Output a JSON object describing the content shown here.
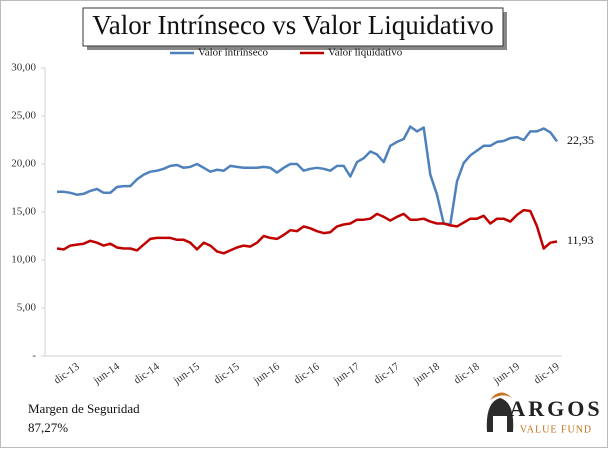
{
  "chart_data": {
    "type": "line",
    "title": "Valor Intrínseco vs Valor Liquidativo",
    "categories": [
      "dic-13",
      null,
      null,
      null,
      null,
      null,
      "jun-14",
      null,
      null,
      null,
      null,
      null,
      "dic-14",
      null,
      null,
      null,
      null,
      null,
      "jun-15",
      null,
      null,
      null,
      null,
      null,
      "dic-15",
      null,
      null,
      null,
      null,
      null,
      "jun-16",
      null,
      null,
      null,
      null,
      null,
      "dic-16",
      null,
      null,
      null,
      null,
      null,
      "jun-17",
      null,
      null,
      null,
      null,
      null,
      "dic-17",
      null,
      null,
      null,
      null,
      null,
      "jun-18",
      null,
      null,
      null,
      null,
      null,
      "dic-18",
      null,
      null,
      null,
      null,
      null,
      "jun-19",
      null,
      null,
      null,
      null,
      null,
      "dic-19",
      null,
      null,
      null
    ],
    "series": [
      {
        "name": "Valor intrínseco",
        "color": "#4f81bd",
        "values": [
          17.1,
          17.1,
          17.0,
          16.8,
          16.9,
          17.2,
          17.4,
          17.0,
          17.0,
          17.6,
          17.7,
          17.7,
          18.4,
          18.9,
          19.2,
          19.3,
          19.5,
          19.8,
          19.9,
          19.6,
          19.7,
          20.0,
          19.6,
          19.2,
          19.4,
          19.3,
          19.8,
          19.7,
          19.6,
          19.6,
          19.6,
          19.7,
          19.6,
          19.1,
          19.6,
          20.0,
          20.0,
          19.3,
          19.5,
          19.6,
          19.5,
          19.3,
          19.8,
          19.8,
          18.7,
          20.2,
          20.6,
          21.3,
          21.0,
          20.2,
          21.9,
          22.3,
          22.6,
          23.9,
          23.4,
          23.8,
          18.9,
          16.8,
          13.8,
          13.7,
          18.2,
          20.1,
          20.9,
          21.4,
          21.9,
          21.9,
          22.3,
          22.4,
          22.7,
          22.8,
          22.5,
          23.4,
          23.4,
          23.7,
          23.3,
          22.35
        ],
        "value_labels": [
          null,
          null,
          null,
          null,
          null,
          null,
          null,
          null,
          null,
          null,
          null,
          null,
          null,
          null,
          null,
          null,
          null,
          null,
          null,
          null,
          null,
          null,
          null,
          null,
          null,
          null,
          null,
          null,
          null,
          null,
          null,
          null,
          null,
          null,
          null,
          null,
          null,
          null,
          null,
          null,
          null,
          null,
          null,
          null,
          null,
          null,
          null,
          null,
          null,
          null,
          null,
          null,
          null,
          null,
          null,
          null,
          null,
          null,
          null,
          null,
          null,
          null,
          null,
          null,
          null,
          null,
          null,
          null,
          null,
          null,
          null,
          null,
          null,
          null,
          null,
          "22,35"
        ]
      },
      {
        "name": "Valor liquidativo",
        "color": "#c00000",
        "values": [
          11.2,
          11.1,
          11.5,
          11.6,
          11.7,
          12.0,
          11.8,
          11.5,
          11.7,
          11.3,
          11.2,
          11.2,
          11.0,
          11.6,
          12.2,
          12.3,
          12.3,
          12.3,
          12.1,
          12.1,
          11.8,
          11.1,
          11.8,
          11.5,
          10.9,
          10.7,
          11.0,
          11.3,
          11.5,
          11.4,
          11.8,
          12.5,
          12.3,
          12.2,
          12.6,
          13.1,
          13.0,
          13.5,
          13.3,
          13.0,
          12.8,
          12.9,
          13.5,
          13.7,
          13.8,
          14.2,
          14.2,
          14.3,
          14.8,
          14.5,
          14.1,
          14.5,
          14.8,
          14.2,
          14.2,
          14.3,
          14.0,
          13.8,
          13.8,
          13.6,
          13.5,
          13.9,
          14.3,
          14.3,
          14.6,
          13.8,
          14.3,
          14.3,
          14.0,
          14.7,
          15.2,
          15.1,
          13.5,
          11.2,
          11.8,
          11.93
        ],
        "value_labels": [
          null,
          null,
          null,
          null,
          null,
          null,
          null,
          null,
          null,
          null,
          null,
          null,
          null,
          null,
          null,
          null,
          null,
          null,
          null,
          null,
          null,
          null,
          null,
          null,
          null,
          null,
          null,
          null,
          null,
          null,
          null,
          null,
          null,
          null,
          null,
          null,
          null,
          null,
          null,
          null,
          null,
          null,
          null,
          null,
          null,
          null,
          null,
          null,
          null,
          null,
          null,
          null,
          null,
          null,
          null,
          null,
          null,
          null,
          null,
          null,
          null,
          null,
          null,
          null,
          null,
          null,
          null,
          null,
          null,
          null,
          null,
          null,
          null,
          null,
          null,
          "11,93"
        ]
      }
    ],
    "ylim": [
      0,
      30
    ],
    "yticks": [
      {
        "value": 0,
        "label": "-"
      },
      {
        "value": 5,
        "label": "5,00"
      },
      {
        "value": 10,
        "label": "10,00"
      },
      {
        "value": 15,
        "label": "15,00"
      },
      {
        "value": 20,
        "label": "20,00"
      },
      {
        "value": 25,
        "label": "25,00"
      },
      {
        "value": 30,
        "label": "30,00"
      }
    ],
    "annotations": [
      "Margen de Seguridad",
      "87,27%"
    ],
    "logo": {
      "name": "ARGOS",
      "subtitle": "VALUE FUND"
    }
  }
}
